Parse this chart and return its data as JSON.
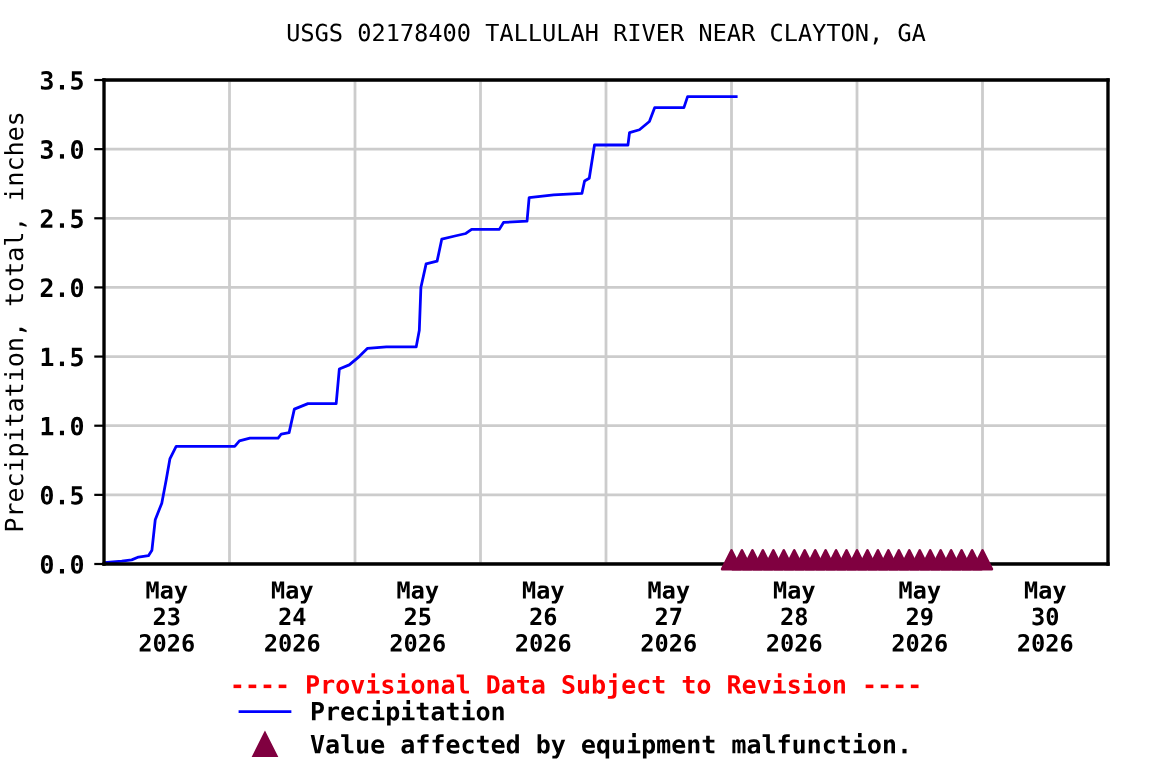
{
  "chart_data": {
    "type": "line",
    "title": "USGS 02178400 TALLULAH RIVER NEAR CLAYTON, GA",
    "ylabel": "Precipitation, total, inches",
    "annotations": [
      "---- Provisional Data Subject to Revision ----"
    ],
    "xlim": [
      "2026-05-23T00:00",
      "2026-05-31T00:00"
    ],
    "xticks": [
      {
        "value": "2026-05-23T00:00",
        "label": null
      },
      {
        "value": "2026-05-24T00:00",
        "label": null
      },
      {
        "value": "2026-05-25T00:00",
        "label": null
      },
      {
        "value": "2026-05-26T00:00",
        "label": null
      },
      {
        "value": "2026-05-27T00:00",
        "label": null
      },
      {
        "value": "2026-05-28T00:00",
        "label": null
      },
      {
        "value": "2026-05-29T00:00",
        "label": null
      },
      {
        "value": "2026-05-30T00:00",
        "label": null
      },
      {
        "value": "2026-05-31T00:00",
        "label": null
      },
      {
        "value": "2026-05-23T12:00",
        "label": "May\n23\n2026"
      },
      {
        "value": "2026-05-24T12:00",
        "label": "May\n24\n2026"
      },
      {
        "value": "2026-05-25T12:00",
        "label": "May\n25\n2026"
      },
      {
        "value": "2026-05-26T12:00",
        "label": "May\n26\n2026"
      },
      {
        "value": "2026-05-27T12:00",
        "label": "May\n27\n2026"
      },
      {
        "value": "2026-05-28T12:00",
        "label": "May\n28\n2026"
      },
      {
        "value": "2026-05-29T12:00",
        "label": "May\n29\n2026"
      },
      {
        "value": "2026-05-30T12:00",
        "label": "May\n30\n2026"
      }
    ],
    "ylim": [
      0,
      3.5
    ],
    "yticks": [
      {
        "value": 0,
        "label": "0.0"
      },
      0.5,
      {
        "value": 1,
        "label": "1.0"
      },
      1.5,
      {
        "value": 2,
        "label": "2.0"
      },
      2.5,
      {
        "value": 3,
        "label": "3.0"
      },
      3.5
    ],
    "grid": true,
    "legend": "bottom",
    "series": [
      {
        "name": "Precipitation",
        "color": "#0000ff",
        "marker": "none",
        "x": [
          "2026-05-23T00:00",
          "2026-05-23T03:24",
          "2026-05-23T05:18",
          "2026-05-23T06:36",
          "2026-05-23T08:30",
          "2026-05-23T09:10",
          "2026-05-23T09:48",
          "2026-05-23T11:03",
          "2026-05-23T11:54",
          "2026-05-23T12:36",
          "2026-05-23T13:48",
          "2026-05-24T01:00",
          "2026-05-24T01:54",
          "2026-05-24T03:54",
          "2026-05-24T09:18",
          "2026-05-24T09:54",
          "2026-05-24T11:24",
          "2026-05-24T12:24",
          "2026-05-24T15:00",
          "2026-05-24T20:24",
          "2026-05-24T21:00",
          "2026-05-24T22:54",
          "2026-05-25T00:48",
          "2026-05-25T02:24",
          "2026-05-25T06:00",
          "2026-05-25T11:42",
          "2026-05-25T12:18",
          "2026-05-25T12:36",
          "2026-05-25T13:36",
          "2026-05-25T15:42",
          "2026-05-25T16:36",
          "2026-05-25T18:54",
          "2026-05-25T21:12",
          "2026-05-25T22:18",
          "2026-05-26T03:36",
          "2026-05-26T04:24",
          "2026-05-26T08:54",
          "2026-05-26T09:18",
          "2026-05-26T14:00",
          "2026-05-26T19:24",
          "2026-05-26T19:54",
          "2026-05-26T20:48",
          "2026-05-26T21:48",
          "2026-05-27T04:12",
          "2026-05-27T04:30",
          "2026-05-27T06:24",
          "2026-05-27T08:18",
          "2026-05-27T09:18",
          "2026-05-27T14:54",
          "2026-05-27T15:36",
          "2026-05-28T00:54"
        ],
        "values": [
          0.01,
          0.02,
          0.03,
          0.05,
          0.06,
          0.1,
          0.32,
          0.44,
          0.61,
          0.76,
          0.85,
          0.85,
          0.89,
          0.91,
          0.91,
          0.94,
          0.95,
          1.12,
          1.16,
          1.16,
          1.41,
          1.44,
          1.5,
          1.56,
          1.57,
          1.57,
          1.69,
          2.0,
          2.17,
          2.19,
          2.35,
          2.37,
          2.39,
          2.42,
          2.42,
          2.47,
          2.48,
          2.65,
          2.67,
          2.68,
          2.77,
          2.79,
          3.03,
          3.03,
          3.12,
          3.14,
          3.2,
          3.3,
          3.3,
          3.38,
          3.38
        ]
      },
      {
        "name": "Value affected by equipment malfunction.",
        "type": "scatter",
        "color": "#800040",
        "marker": "triangle",
        "x": [
          "2026-05-28T00:00",
          "2026-05-28T02:00",
          "2026-05-28T04:00",
          "2026-05-28T06:00",
          "2026-05-28T08:00",
          "2026-05-28T10:00",
          "2026-05-28T12:00",
          "2026-05-28T14:00",
          "2026-05-28T16:00",
          "2026-05-28T18:00",
          "2026-05-28T20:00",
          "2026-05-28T22:00",
          "2026-05-29T00:00",
          "2026-05-29T02:00",
          "2026-05-29T04:00",
          "2026-05-29T06:00",
          "2026-05-29T08:00",
          "2026-05-29T10:00",
          "2026-05-29T12:00",
          "2026-05-29T14:00",
          "2026-05-29T16:00",
          "2026-05-29T18:00",
          "2026-05-29T20:00",
          "2026-05-29T22:00",
          "2026-05-30T00:00"
        ],
        "values": [
          0.03,
          0.03,
          0.03,
          0.03,
          0.03,
          0.03,
          0.03,
          0.03,
          0.03,
          0.03,
          0.03,
          0.03,
          0.03,
          0.03,
          0.03,
          0.03,
          0.03,
          0.03,
          0.03,
          0.03,
          0.03,
          0.03,
          0.03,
          0.03,
          0.03
        ]
      }
    ]
  }
}
